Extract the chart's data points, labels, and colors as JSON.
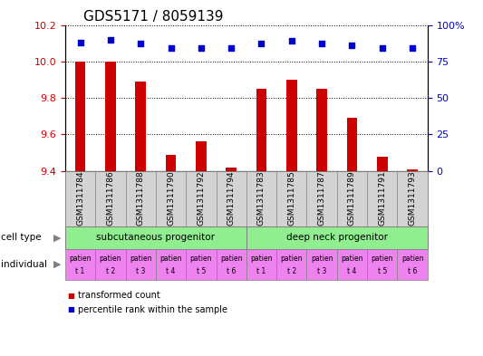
{
  "title": "GDS5171 / 8059139",
  "samples": [
    "GSM1311784",
    "GSM1311786",
    "GSM1311788",
    "GSM1311790",
    "GSM1311792",
    "GSM1311794",
    "GSM1311783",
    "GSM1311785",
    "GSM1311787",
    "GSM1311789",
    "GSM1311791",
    "GSM1311793"
  ],
  "transformed_counts": [
    10.0,
    10.0,
    9.89,
    9.49,
    9.56,
    9.42,
    9.85,
    9.9,
    9.85,
    9.69,
    9.48,
    9.41
  ],
  "percentile_ranks": [
    88,
    90,
    87,
    84,
    84,
    84,
    87,
    89,
    87,
    86,
    84,
    84
  ],
  "ylim_left": [
    9.4,
    10.2
  ],
  "ylim_right": [
    0,
    100
  ],
  "yticks_left": [
    9.4,
    9.6,
    9.8,
    10.0,
    10.2
  ],
  "yticks_right": [
    0,
    25,
    50,
    75,
    100
  ],
  "bar_color": "#cc0000",
  "dot_color": "#0000cc",
  "cell_type_groups": [
    {
      "label": "subcutaneous progenitor",
      "start": 0,
      "end": 5,
      "color": "#90ee90"
    },
    {
      "label": "deep neck progenitor",
      "start": 6,
      "end": 11,
      "color": "#90ee90"
    }
  ],
  "individual_labels": [
    "t 1",
    "t 2",
    "t 3",
    "t 4",
    "t 5",
    "t 6",
    "t 1",
    "t 2",
    "t 3",
    "t 4",
    "t 5",
    "t 6"
  ],
  "individual_top": "patien",
  "individual_color": "#ee82ee",
  "cell_type_label": "cell type",
  "individual_label": "individual",
  "legend_bar_label": "transformed count",
  "legend_dot_label": "percentile rank within the sample",
  "tick_label_color_left": "#cc0000",
  "tick_label_color_right": "#0000cc",
  "background_color": "#ffffff",
  "sample_bg_color": "#d3d3d3",
  "bar_width": 0.35,
  "title_fontsize": 11,
  "tick_fontsize": 8,
  "sample_fontsize": 6.5
}
